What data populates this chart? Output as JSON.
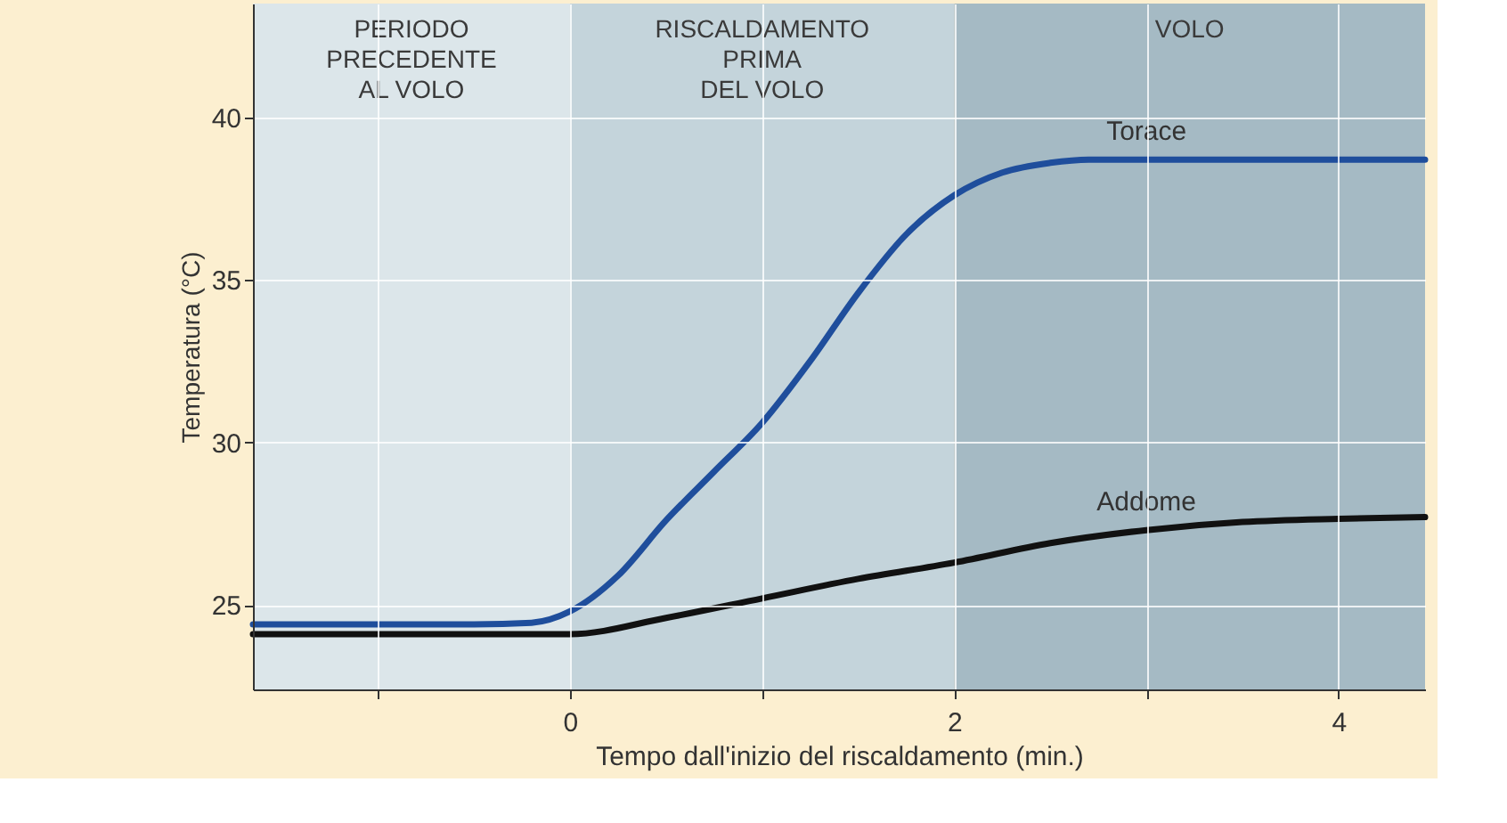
{
  "chart_data": {
    "type": "line",
    "xlabel": "Tempo dall'inizio del riscaldamento (min.)",
    "ylabel": "Temperatura (°C)",
    "xlim": [
      -1.65,
      4.45
    ],
    "ylim": [
      22.4,
      43.5
    ],
    "xticks": [
      {
        "value": -1,
        "label": null
      },
      0,
      {
        "value": 1,
        "label": null
      },
      2,
      {
        "value": 3,
        "label": null
      },
      4
    ],
    "yticks": [
      25,
      30,
      35,
      40
    ],
    "grid": true,
    "line_style": "solid",
    "marker": "none",
    "bands": [
      {
        "axis": "x",
        "from": -1.65,
        "to": 0,
        "label": "PERIODO\nPRECEDENTE\nAL VOLO",
        "color": "#dce6ea"
      },
      {
        "axis": "x",
        "from": 0,
        "to": 2,
        "label": "RISCALDAMENTO\nPRIMA\nDEL VOLO",
        "color": "#c4d4db"
      },
      {
        "axis": "x",
        "from": 2,
        "to": 4.45,
        "label": "VOLO",
        "color": "#a5bac4"
      }
    ],
    "series": [
      {
        "name": "Torace",
        "color": "#1f4e9c",
        "x": [
          -1.65,
          -1,
          -0.5,
          -0.2,
          0,
          0.25,
          0.5,
          0.75,
          1,
          1.25,
          1.5,
          1.75,
          2,
          2.25,
          2.5,
          2.7,
          3,
          3.5,
          4,
          4.45
        ],
        "values": [
          24.4,
          24.4,
          24.4,
          24.45,
          24.8,
          25.9,
          27.6,
          29.1,
          30.6,
          32.5,
          34.6,
          36.4,
          37.6,
          38.3,
          38.6,
          38.7,
          38.7,
          38.7,
          38.7,
          38.7
        ]
      },
      {
        "name": "Addome",
        "color": "#111111",
        "x": [
          -1.65,
          -1,
          0,
          0.5,
          1,
          1.5,
          2,
          2.5,
          3,
          3.5,
          4,
          4.45
        ],
        "values": [
          24.1,
          24.1,
          24.1,
          24.6,
          25.2,
          25.8,
          26.3,
          26.9,
          27.3,
          27.55,
          27.65,
          27.7
        ]
      }
    ]
  }
}
